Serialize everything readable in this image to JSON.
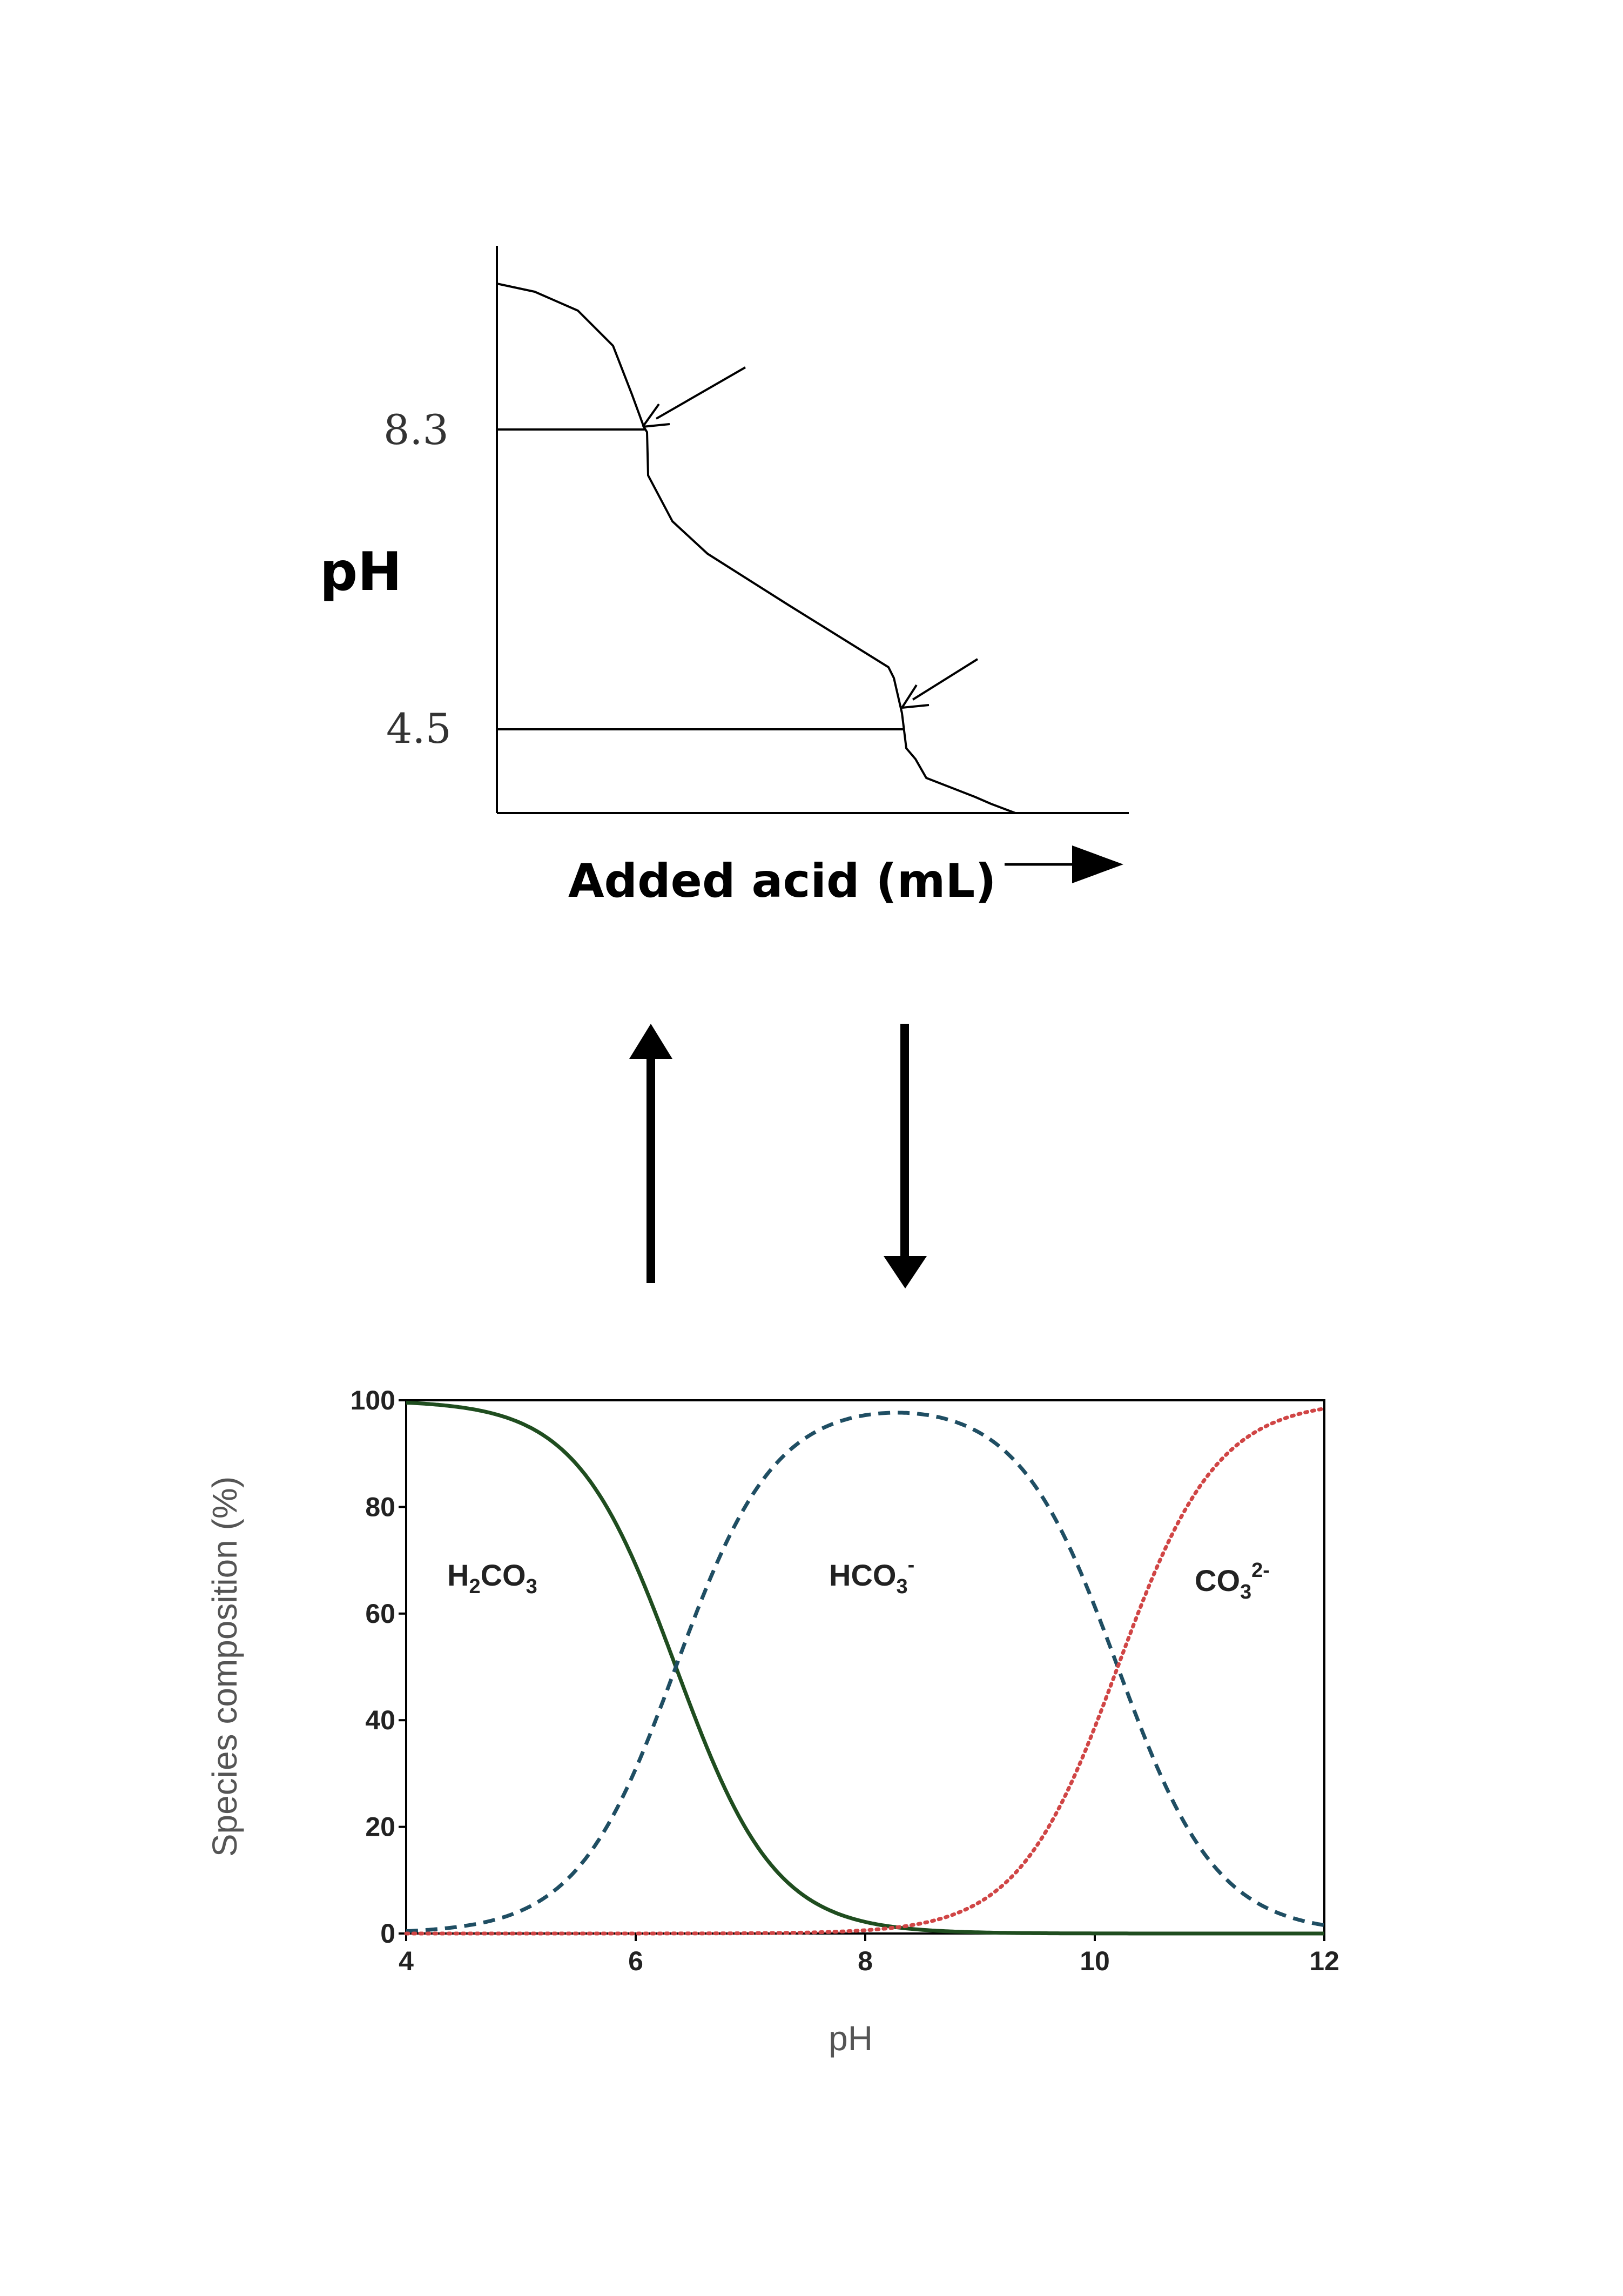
{
  "top_chart": {
    "y_label": "pH",
    "x_label": "Added acid (mL)",
    "tick_labels": [
      "8.3",
      "4.5"
    ],
    "chart_data": {
      "type": "line",
      "title": "",
      "xlabel": "Added acid (mL)",
      "ylabel": "pH",
      "marked_points": [
        8.3,
        4.5
      ],
      "annotations": [
        "arrow at pH 8.3 endpoint",
        "arrow at pH 4.5 endpoint"
      ]
    }
  },
  "connector": {
    "arrows": [
      "up-arrow",
      "down-arrow"
    ]
  },
  "bottom_chart": {
    "y_label": "Species composition (%)",
    "x_label": "pH",
    "species": {
      "h2co3": {
        "base": "H",
        "sub1": "2",
        "mid": "CO",
        "sub2": "3",
        "sup": ""
      },
      "hco3": {
        "base": "HCO",
        "sub": "3",
        "sup": "-"
      },
      "co3": {
        "base": "CO",
        "sub": "3",
        "sup": "2-"
      }
    },
    "chart_data": {
      "type": "line",
      "title": "",
      "xlabel": "pH",
      "ylabel": "Species composition (%)",
      "xlim": [
        4,
        12
      ],
      "ylim": [
        0,
        100
      ],
      "x_ticks": [
        "4",
        "6",
        "8",
        "10",
        "12"
      ],
      "y_ticks": [
        "0",
        "20",
        "40",
        "60",
        "80",
        "100"
      ],
      "pKa1": 6.35,
      "pKa2": 10.2,
      "x": [
        4,
        5,
        6,
        6.35,
        7,
        8,
        8.3,
        9,
        10,
        10.2,
        11,
        12
      ],
      "series": [
        {
          "name": "H2CO3",
          "style": "solid",
          "color": "#1f4d1f",
          "values": [
            99.6,
            95.7,
            69.1,
            49.8,
            18.3,
            2.2,
            1.1,
            0.2,
            0.0,
            0.0,
            0.0,
            0.0
          ]
        },
        {
          "name": "HCO3-",
          "style": "dashed",
          "color": "#1f4e63",
          "values": [
            0.4,
            4.3,
            30.9,
            50.2,
            81.7,
            97.4,
            97.8,
            97.4,
            61.2,
            50.0,
            13.7,
            1.6
          ]
        },
        {
          "name": "CO32-",
          "style": "dotted",
          "color": "#d04545",
          "values": [
            0.0,
            0.0,
            0.0,
            0.0,
            0.0,
            0.4,
            1.1,
            2.4,
            38.8,
            50.0,
            86.3,
            98.4
          ]
        }
      ]
    }
  }
}
